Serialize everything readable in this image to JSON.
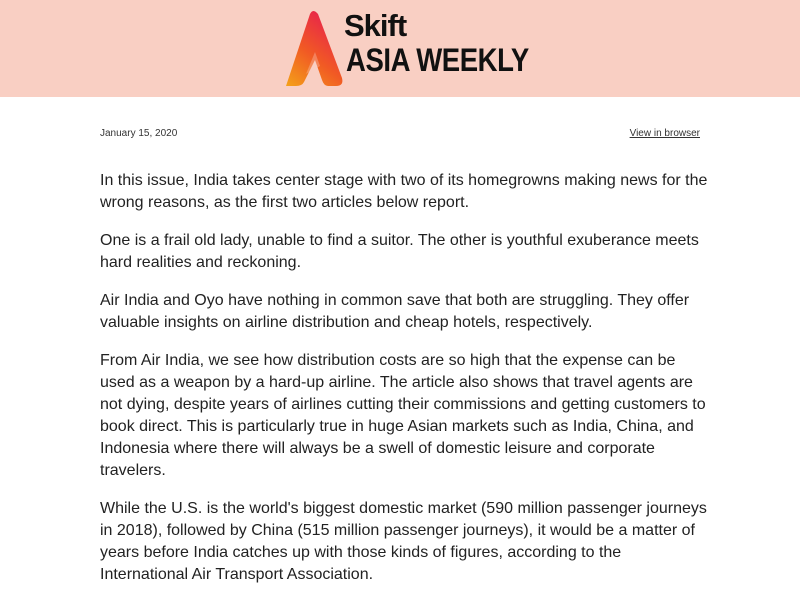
{
  "header": {
    "logo_word": "Skift",
    "logo_subtitle": "ASIA WEEKLY",
    "background_color": "#f9cfc3",
    "logo_icon": "skift-a-logo-icon"
  },
  "meta": {
    "date": "January 15, 2020",
    "view_in_browser": "View in browser"
  },
  "body": {
    "paragraphs": [
      "In this issue, India takes center stage with two of its homegrowns making news for the wrong reasons, as the first two articles below report.",
      "One is a frail old lady, unable to find a suitor. The other is youthful exuberance meets hard realities and reckoning.",
      "Air India and Oyo have nothing in common save that both are struggling. They offer valuable insights on airline distribution and cheap hotels, respectively.",
      "From Air India, we see how distribution costs are so high that the expense can be used as a weapon by a hard-up airline. The article also shows that travel agents are not dying, despite years of airlines cutting their commissions and getting customers to book direct. This is particularly true in huge Asian markets such as India, China, and Indonesia where there will always be a swell of domestic leisure and corporate travelers.",
      "While the U.S. is the world's biggest domestic market (590 million passenger journeys in 2018), followed by China (515 million passenger journeys), it would be a matter of years before India catches up with those kinds of figures, according to the International Air Transport Association."
    ]
  }
}
